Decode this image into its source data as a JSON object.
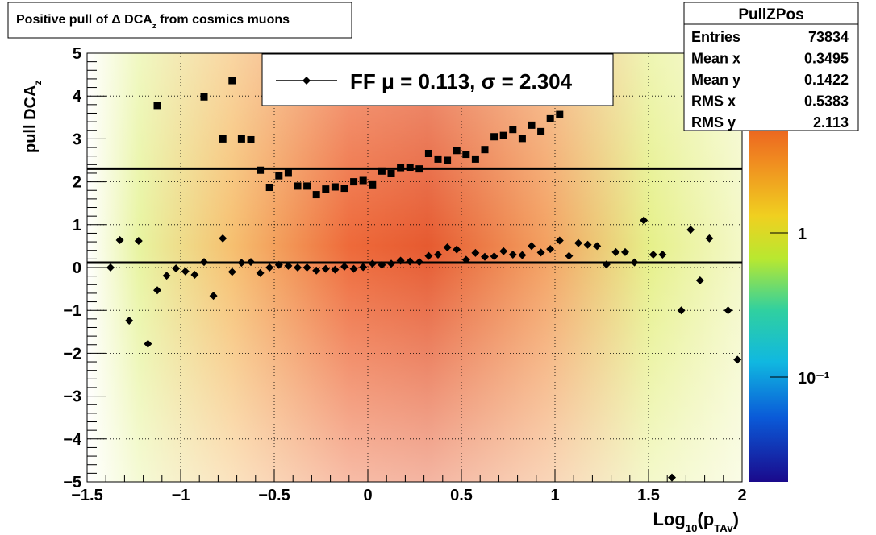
{
  "chart_data": {
    "type": "scatter",
    "title": [
      {
        "text": "Positive pull of Δ DCA"
      },
      {
        "text": "z",
        "sub": true
      },
      {
        "text": " from cosmics muons"
      }
    ],
    "xlabel": [
      {
        "text": "Log"
      },
      {
        "text": "10",
        "sub": true
      },
      {
        "text": "(p"
      },
      {
        "text": "TAv",
        "sub": true
      },
      {
        "text": ")"
      }
    ],
    "ylabel": [
      {
        "text": "pull DCA"
      },
      {
        "text": "z",
        "sub": true
      }
    ],
    "xlim": [
      -1.5,
      2
    ],
    "ylim": [
      -5,
      5
    ],
    "xticks": [
      {
        "value": -1.5,
        "label": "−1.5"
      },
      {
        "value": -1,
        "label": "−1"
      },
      {
        "value": -0.5,
        "label": "−0.5"
      },
      0,
      0.5,
      1,
      1.5,
      2
    ],
    "yticks": [
      {
        "value": -5,
        "label": "−5"
      },
      {
        "value": -4,
        "label": "−4"
      },
      {
        "value": -3,
        "label": "−3"
      },
      {
        "value": -2,
        "label": "−2"
      },
      {
        "value": -1,
        "label": "−1"
      },
      0,
      1,
      2,
      3,
      4,
      5
    ],
    "grid": true,
    "series": [
      {
        "marker": "diamond",
        "color": "#000000",
        "x": [
          -1.375,
          -1.325,
          -1.275,
          -1.225,
          -1.175,
          -1.125,
          -1.075,
          -1.025,
          -0.975,
          -0.925,
          -0.875,
          -0.825,
          -0.775,
          -0.725,
          -0.675,
          -0.625,
          -0.575,
          -0.525,
          -0.475,
          -0.425,
          -0.375,
          -0.325,
          -0.275,
          -0.225,
          -0.175,
          -0.125,
          -0.075,
          -0.025,
          0.025,
          0.075,
          0.125,
          0.175,
          0.225,
          0.275,
          0.325,
          0.375,
          0.425,
          0.475,
          0.525,
          0.575,
          0.625,
          0.675,
          0.725,
          0.775,
          0.825,
          0.875,
          0.925,
          0.975,
          1.025,
          1.075,
          1.125,
          1.175,
          1.225,
          1.275,
          1.325,
          1.375,
          1.425,
          1.475,
          1.525,
          1.575,
          1.625,
          1.675,
          1.725,
          1.775,
          1.825,
          1.925,
          1.975
        ],
        "values": [
          0,
          0.64,
          -1.24,
          0.62,
          -1.78,
          -0.53,
          -0.19,
          -0.02,
          -0.09,
          -0.17,
          0.13,
          -0.66,
          0.68,
          -0.1,
          0.11,
          0.13,
          -0.13,
          0,
          0.06,
          0.04,
          0,
          0,
          -0.07,
          -0.03,
          -0.05,
          0.02,
          -0.03,
          0.01,
          0.09,
          0.06,
          0.09,
          0.16,
          0.14,
          0.13,
          0.27,
          0.3,
          0.47,
          0.42,
          0.18,
          0.34,
          0.25,
          0.26,
          0.38,
          0.3,
          0.29,
          0.5,
          0.35,
          0.43,
          0.63,
          0.27,
          0.57,
          0.53,
          0.5,
          0.07,
          0.36,
          0.36,
          0.12,
          1.1,
          0.3,
          0.3,
          -4.9,
          -1.0,
          0.88,
          -0.3,
          0.68,
          -1.0,
          -2.15
        ]
      },
      {
        "marker": "square",
        "color": "#000000",
        "x": [
          -1.125,
          -0.875,
          -0.775,
          -0.725,
          -0.675,
          -0.625,
          -0.575,
          -0.525,
          -0.475,
          -0.425,
          -0.375,
          -0.325,
          -0.275,
          -0.225,
          -0.175,
          -0.125,
          -0.075,
          -0.025,
          0.025,
          0.075,
          0.125,
          0.175,
          0.225,
          0.275,
          0.325,
          0.375,
          0.425,
          0.475,
          0.525,
          0.575,
          0.625,
          0.675,
          0.725,
          0.775,
          0.825,
          0.875,
          0.925,
          0.975,
          1.025
        ],
        "values": [
          3.78,
          3.98,
          3.0,
          4.36,
          3.0,
          2.98,
          2.27,
          1.87,
          2.14,
          2.2,
          1.9,
          1.9,
          1.7,
          1.83,
          1.88,
          1.85,
          2.0,
          2.03,
          1.93,
          2.25,
          2.19,
          2.33,
          2.34,
          2.3,
          2.66,
          2.53,
          2.5,
          2.73,
          2.64,
          2.53,
          2.75,
          3.05,
          3.08,
          3.22,
          3.01,
          3.32,
          3.17,
          3.47,
          3.57
        ]
      }
    ],
    "fit": {
      "mu": 0.113,
      "sigma": 2.304
    },
    "legend_text": "FF μ =  0.113, σ =   2.304",
    "zscale": "log",
    "zlim": [
      0.0188,
      17.6
    ],
    "zticks": [
      {
        "value": 1,
        "label": "1"
      },
      {
        "value": 0.1,
        "label": "10⁻¹"
      }
    ],
    "stats": {
      "title": "PullZPos",
      "rows": [
        {
          "label": "Entries",
          "value": 73834
        },
        {
          "label": "Mean x",
          "value": 0.3495
        },
        {
          "label": "Mean y",
          "value": 0.1422
        },
        {
          "label": "RMS x",
          "value": 0.5383
        },
        {
          "label": "RMS y",
          "value": 2.113
        }
      ]
    }
  }
}
